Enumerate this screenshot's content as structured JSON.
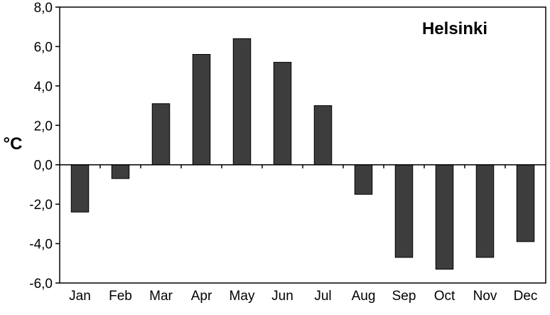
{
  "chart_data": {
    "type": "bar",
    "title": "",
    "annotation": "Helsinki",
    "xlabel": "",
    "ylabel": "°C",
    "categories": [
      "Jan",
      "Feb",
      "Mar",
      "Apr",
      "May",
      "Jun",
      "Jul",
      "Aug",
      "Sep",
      "Oct",
      "Nov",
      "Dec"
    ],
    "values": [
      -2.4,
      -0.7,
      3.1,
      5.6,
      6.4,
      5.2,
      3.0,
      -1.5,
      -4.7,
      -5.3,
      -4.7,
      -3.9
    ],
    "ylim": [
      -6.0,
      8.0
    ],
    "yticks": [
      8.0,
      6.0,
      4.0,
      2.0,
      0.0,
      -2.0,
      -4.0,
      -6.0
    ],
    "ytick_labels": [
      "8,0",
      "6,0",
      "4,0",
      "2,0",
      "0,0",
      "-2,0",
      "-4,0",
      "-6,0"
    ],
    "grid": false,
    "legend": "none",
    "bar_color": "#3d3d3d",
    "axis_color": "#000000"
  }
}
